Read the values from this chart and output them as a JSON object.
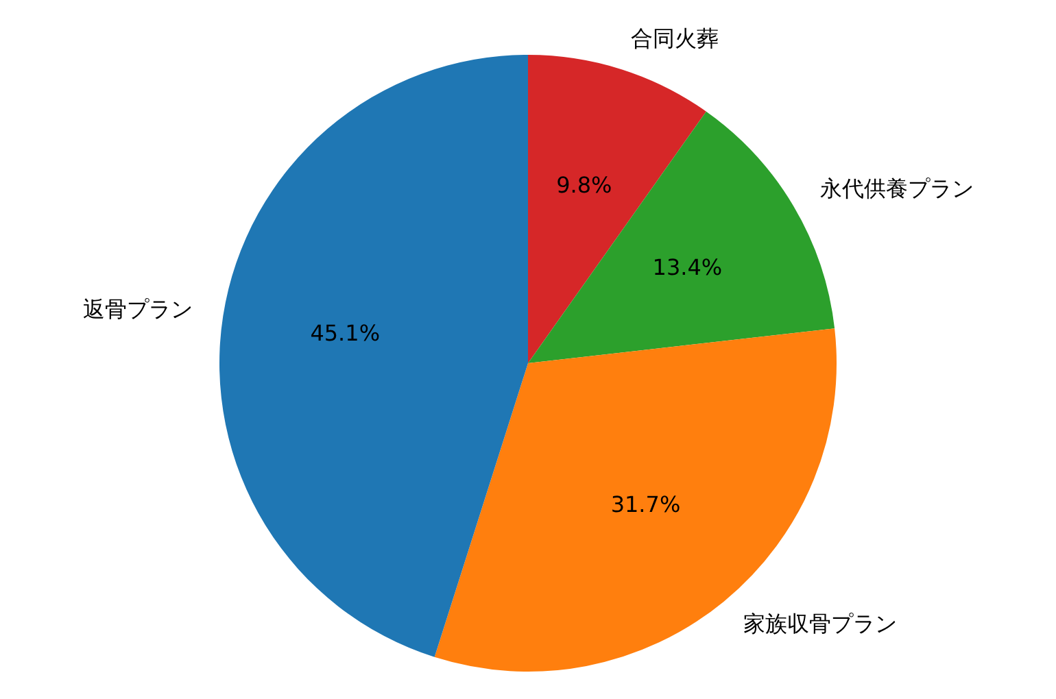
{
  "chart_data": {
    "type": "pie",
    "categories": [
      "合同火葬",
      "永代供養プラン",
      "家族収骨プラン",
      "返骨プラン"
    ],
    "values": [
      9.8,
      13.4,
      31.7,
      45.1
    ],
    "colors": [
      "#d62728",
      "#2ca02c",
      "#ff7f0e",
      "#1f77b4"
    ],
    "value_labels": [
      "9.8%",
      "13.4%",
      "31.7%",
      "45.1%"
    ]
  }
}
